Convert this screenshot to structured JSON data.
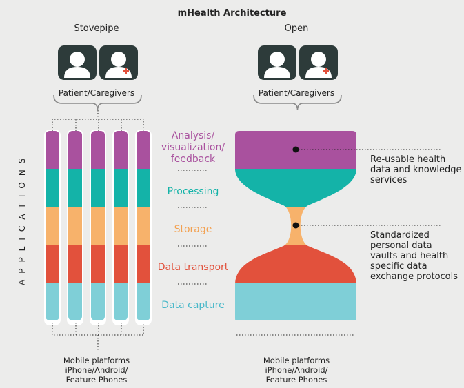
{
  "title": "mHealth Architecture",
  "left_heading": "Stovepipe",
  "right_heading": "Open",
  "users_label": "Patient/Caregivers",
  "vertical_label": "APPLICATIONS",
  "layers": [
    {
      "label": "Analysis/\nvisualization/\nfeedback",
      "color": "#a9519e"
    },
    {
      "label": "Processing",
      "color": "#14b3a8"
    },
    {
      "label": "Storage",
      "color": "#f7b26b"
    },
    {
      "label": "Data transport",
      "color": "#e2513c"
    },
    {
      "label": "Data capture",
      "color": "#7fcfd7"
    }
  ],
  "callouts": [
    {
      "text": "Re-usable health\ndata and knowledge\nservices"
    },
    {
      "text": "Standardized\npersonal data\nvaults and health\nspecific data\nexchange protocols"
    }
  ],
  "footer": "Mobile platforms\niPhone/Android/\nFeature Phones",
  "colors": {
    "icon_bg": "#2d3b3a",
    "icon_cross": "#e2513c",
    "brace": "#8a8a8a"
  }
}
